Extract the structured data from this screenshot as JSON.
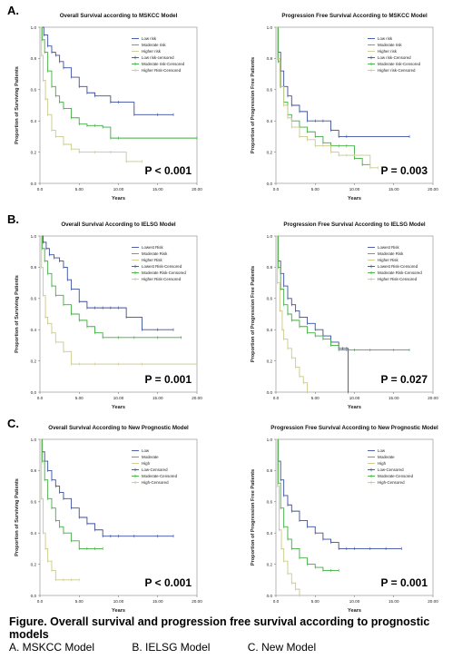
{
  "panel_letters": [
    "A.",
    "B.",
    "C."
  ],
  "caption": {
    "title": "Figure. Overall survival and progression free survival according to prognostic models",
    "models": [
      "A. MSKCC Model",
      "B. IELSG Model",
      "C. New Model"
    ]
  },
  "colors": {
    "series1": "#3a4fa0",
    "series2": "#3fae3f",
    "series3": "#c9c98a"
  },
  "chart_data": [
    {
      "type": "line",
      "title": "Overall Survival according to MSKCC Model",
      "xlabel": "Years",
      "ylabel": "Proportion of Surviving Patients",
      "xlim": [
        0,
        20
      ],
      "ylim": [
        0,
        1.0
      ],
      "xticks": [
        "0.0",
        "5.00",
        "10.00",
        "15.00",
        "20.00"
      ],
      "yticks": [
        "0.0",
        "0.2",
        "0.4",
        "0.6",
        "0.8",
        "1.0"
      ],
      "legend": [
        "Low risk",
        "Moderate risk",
        "Higher risk",
        "Low risk-censored",
        "Moderate risk-Censored",
        "Higher Risk-Censored"
      ],
      "pvalue": "P < 0.001",
      "series": [
        {
          "x": [
            0,
            0.5,
            1,
            1.5,
            2,
            2.5,
            3,
            4,
            5,
            6,
            7,
            9,
            10,
            12,
            15,
            17
          ],
          "y": [
            1.0,
            0.95,
            0.88,
            0.84,
            0.82,
            0.78,
            0.74,
            0.68,
            0.62,
            0.58,
            0.56,
            0.52,
            0.52,
            0.44,
            0.44,
            0.44
          ]
        },
        {
          "x": [
            0,
            0.3,
            0.6,
            1,
            1.5,
            2,
            2.5,
            3,
            4,
            5,
            6,
            7,
            8,
            9,
            10,
            20
          ],
          "y": [
            1.0,
            0.92,
            0.84,
            0.72,
            0.62,
            0.56,
            0.52,
            0.48,
            0.42,
            0.38,
            0.37,
            0.37,
            0.36,
            0.29,
            0.29,
            0.29
          ]
        },
        {
          "x": [
            0,
            0.2,
            0.4,
            0.7,
            1,
            1.5,
            2,
            3,
            4,
            5,
            7,
            9,
            11,
            13
          ],
          "y": [
            1.0,
            0.82,
            0.66,
            0.54,
            0.44,
            0.34,
            0.3,
            0.25,
            0.22,
            0.2,
            0.2,
            0.2,
            0.14,
            0.14
          ]
        }
      ]
    },
    {
      "type": "line",
      "title": "Progression Free Survival According to MSKCC Model",
      "xlabel": "Years",
      "ylabel": "Proportion of Progression Free Patients",
      "xlim": [
        0,
        20
      ],
      "ylim": [
        0,
        1.0
      ],
      "xticks": [
        "0.0",
        "5.00",
        "10.00",
        "15.00",
        "20.00"
      ],
      "yticks": [
        "0.0",
        "0.2",
        "0.4",
        "0.6",
        "0.8",
        "1.0"
      ],
      "legend": [
        "Low risk",
        "Moderate risk",
        "Higher risk",
        "Low risk-Censored",
        "Moderate risk-Censored",
        "Higher risk-Censored"
      ],
      "pvalue": "P = 0.003",
      "series": [
        {
          "x": [
            0,
            0.3,
            0.6,
            1,
            1.5,
            2,
            3,
            4,
            5,
            6,
            7,
            8,
            9,
            17
          ],
          "y": [
            1.0,
            0.84,
            0.72,
            0.62,
            0.56,
            0.5,
            0.46,
            0.4,
            0.4,
            0.4,
            0.34,
            0.3,
            0.3,
            0.3
          ]
        },
        {
          "x": [
            0,
            0.3,
            0.6,
            1,
            1.5,
            2,
            3,
            4,
            5,
            6,
            7,
            8,
            9,
            10,
            11,
            12
          ],
          "y": [
            1.0,
            0.78,
            0.62,
            0.52,
            0.44,
            0.4,
            0.36,
            0.33,
            0.3,
            0.26,
            0.24,
            0.24,
            0.24,
            0.16,
            0.12,
            0.12
          ]
        },
        {
          "x": [
            0,
            0.2,
            0.5,
            1,
            1.5,
            2,
            3,
            4,
            5,
            6,
            7,
            8,
            9,
            10,
            12,
            13
          ],
          "y": [
            1.0,
            0.8,
            0.62,
            0.5,
            0.42,
            0.36,
            0.3,
            0.28,
            0.24,
            0.24,
            0.2,
            0.18,
            0.18,
            0.18,
            0.1,
            0.1
          ]
        }
      ]
    },
    {
      "type": "line",
      "title": "Overall Survival According to IELSG Model",
      "xlabel": "Years",
      "ylabel": "Proportion of Surviving Patients",
      "xlim": [
        0,
        20
      ],
      "ylim": [
        0,
        1.0
      ],
      "xticks": [
        "0.0",
        "5.00",
        "10.00",
        "15.00",
        "20.00"
      ],
      "yticks": [
        "0.0",
        "0.2",
        "0.4",
        "0.6",
        "0.8",
        "1.0"
      ],
      "legend": [
        "Lowest Risk",
        "Moderate Risk",
        "Higher Risk",
        "Lowest Risk-Censored",
        "Moderate Risk-Censored",
        "Higher Risk-Censored"
      ],
      "pvalue": "P = 0.001",
      "series": [
        {
          "x": [
            0,
            0.4,
            0.8,
            1.2,
            1.8,
            2.5,
            3,
            3.5,
            4,
            5,
            6,
            7,
            8,
            9,
            10,
            11,
            13,
            15,
            17
          ],
          "y": [
            1.0,
            0.96,
            0.92,
            0.88,
            0.86,
            0.84,
            0.8,
            0.72,
            0.66,
            0.58,
            0.54,
            0.54,
            0.54,
            0.54,
            0.54,
            0.48,
            0.4,
            0.4,
            0.4
          ]
        },
        {
          "x": [
            0,
            0.3,
            0.6,
            1,
            1.5,
            2,
            3,
            4,
            5,
            6,
            7,
            8,
            10,
            12,
            15,
            18
          ],
          "y": [
            1.0,
            0.92,
            0.84,
            0.76,
            0.68,
            0.62,
            0.56,
            0.5,
            0.46,
            0.42,
            0.38,
            0.35,
            0.35,
            0.35,
            0.35,
            0.35
          ]
        },
        {
          "x": [
            0,
            0.2,
            0.4,
            0.7,
            1,
            1.5,
            2,
            3,
            4,
            5,
            7,
            10,
            13,
            20
          ],
          "y": [
            1.0,
            0.8,
            0.62,
            0.48,
            0.44,
            0.38,
            0.32,
            0.26,
            0.18,
            0.18,
            0.18,
            0.18,
            0.18,
            0.18
          ]
        }
      ]
    },
    {
      "type": "line",
      "title": "Progression Free Survival According to IELSG Model",
      "xlabel": "Years",
      "ylabel": "Proportion of Progression Free Patients",
      "xlim": [
        0,
        20
      ],
      "ylim": [
        0,
        1.0
      ],
      "xticks": [
        "0.0",
        "5.00",
        "10.00",
        "15.00",
        "20.00"
      ],
      "yticks": [
        "0.0",
        "0.2",
        "0.4",
        "0.6",
        "0.8",
        "1.0"
      ],
      "legend": [
        "Lowest Risk",
        "Moderate Risk",
        "Higher Risk",
        "Lowest Risk-Censored",
        "Moderate Risk-Censored",
        "Higher Risk-Censored"
      ],
      "pvalue": "P = 0.027",
      "series": [
        {
          "x": [
            0,
            0.3,
            0.6,
            1,
            1.5,
            2,
            2.5,
            3,
            4,
            5,
            6,
            7,
            8,
            8.5,
            9,
            9.2
          ],
          "y": [
            1.0,
            0.84,
            0.76,
            0.68,
            0.6,
            0.56,
            0.52,
            0.48,
            0.44,
            0.4,
            0.36,
            0.32,
            0.28,
            0.28,
            0.28,
            0.0
          ]
        },
        {
          "x": [
            0,
            0.3,
            0.6,
            1,
            1.5,
            2,
            3,
            4,
            5,
            6,
            7,
            8,
            9,
            10,
            12,
            15,
            17
          ],
          "y": [
            1.0,
            0.8,
            0.66,
            0.56,
            0.5,
            0.46,
            0.42,
            0.38,
            0.36,
            0.34,
            0.3,
            0.27,
            0.27,
            0.27,
            0.27,
            0.27,
            0.27
          ]
        },
        {
          "x": [
            0,
            0.2,
            0.5,
            0.8,
            1,
            1.5,
            2,
            2.5,
            3,
            3.5,
            4
          ],
          "y": [
            1.0,
            0.7,
            0.52,
            0.4,
            0.34,
            0.28,
            0.22,
            0.16,
            0.1,
            0.06,
            0.0
          ]
        }
      ]
    },
    {
      "type": "line",
      "title": "Overall Survival According to New Prognostic Model",
      "xlabel": "Years",
      "ylabel": "Proportion of Surviving Patients",
      "xlim": [
        0,
        20
      ],
      "ylim": [
        0,
        1.0
      ],
      "xticks": [
        "0.0",
        "5.00",
        "10.00",
        "15.00",
        "20.00"
      ],
      "yticks": [
        "0.0",
        "0.2",
        "0.4",
        "0.6",
        "0.8",
        "1.0"
      ],
      "legend": [
        "Low",
        "Moderate",
        "High",
        "Low-Censored",
        "Moderate-Censored",
        "High-Censored"
      ],
      "pvalue": "P < 0.001",
      "series": [
        {
          "x": [
            0,
            0.3,
            0.6,
            1,
            1.5,
            2,
            2.5,
            3,
            4,
            5,
            6,
            7,
            8,
            9,
            10,
            12,
            15,
            17
          ],
          "y": [
            1.0,
            0.92,
            0.86,
            0.8,
            0.74,
            0.7,
            0.66,
            0.62,
            0.56,
            0.5,
            0.46,
            0.42,
            0.38,
            0.38,
            0.38,
            0.38,
            0.38,
            0.38
          ]
        },
        {
          "x": [
            0,
            0.3,
            0.6,
            1,
            1.5,
            2,
            2.5,
            3,
            4,
            5,
            6,
            7,
            8
          ],
          "y": [
            1.0,
            0.86,
            0.74,
            0.62,
            0.56,
            0.48,
            0.44,
            0.4,
            0.35,
            0.3,
            0.3,
            0.3,
            0.3
          ]
        },
        {
          "x": [
            0,
            0.2,
            0.4,
            0.7,
            1,
            1.5,
            2,
            3,
            4,
            5
          ],
          "y": [
            1.0,
            0.62,
            0.4,
            0.3,
            0.22,
            0.16,
            0.1,
            0.1,
            0.1,
            0.1
          ]
        }
      ]
    },
    {
      "type": "line",
      "title": "Progression Free Survival According to New Prognostic Model",
      "xlabel": "Years",
      "ylabel": "Proportion of Progression Free Patients",
      "xlim": [
        0,
        20
      ],
      "ylim": [
        0,
        1.0
      ],
      "xticks": [
        "0.0",
        "5.00",
        "10.00",
        "15.00",
        "20.00"
      ],
      "yticks": [
        "0.0",
        "0.2",
        "0.4",
        "0.6",
        "0.8",
        "1.0"
      ],
      "legend": [
        "Low",
        "Moderate",
        "High",
        "Low-Censored",
        "Moderate-Censored",
        "High-Censored"
      ],
      "pvalue": "P = 0.001",
      "series": [
        {
          "x": [
            0,
            0.3,
            0.6,
            1,
            1.5,
            2,
            3,
            4,
            5,
            6,
            7,
            8,
            9,
            10,
            12,
            14,
            16
          ],
          "y": [
            1.0,
            0.86,
            0.74,
            0.64,
            0.58,
            0.54,
            0.48,
            0.44,
            0.4,
            0.36,
            0.34,
            0.3,
            0.3,
            0.3,
            0.3,
            0.3,
            0.3
          ]
        },
        {
          "x": [
            0,
            0.3,
            0.6,
            1,
            1.5,
            2,
            3,
            4,
            5,
            6,
            7,
            8
          ],
          "y": [
            1.0,
            0.72,
            0.56,
            0.44,
            0.36,
            0.3,
            0.24,
            0.2,
            0.18,
            0.16,
            0.16,
            0.16
          ]
        },
        {
          "x": [
            0,
            0.2,
            0.4,
            0.7,
            1,
            1.5,
            2,
            2.5,
            3
          ],
          "y": [
            1.0,
            0.7,
            0.42,
            0.3,
            0.22,
            0.14,
            0.08,
            0.04,
            0.0
          ]
        }
      ]
    }
  ]
}
